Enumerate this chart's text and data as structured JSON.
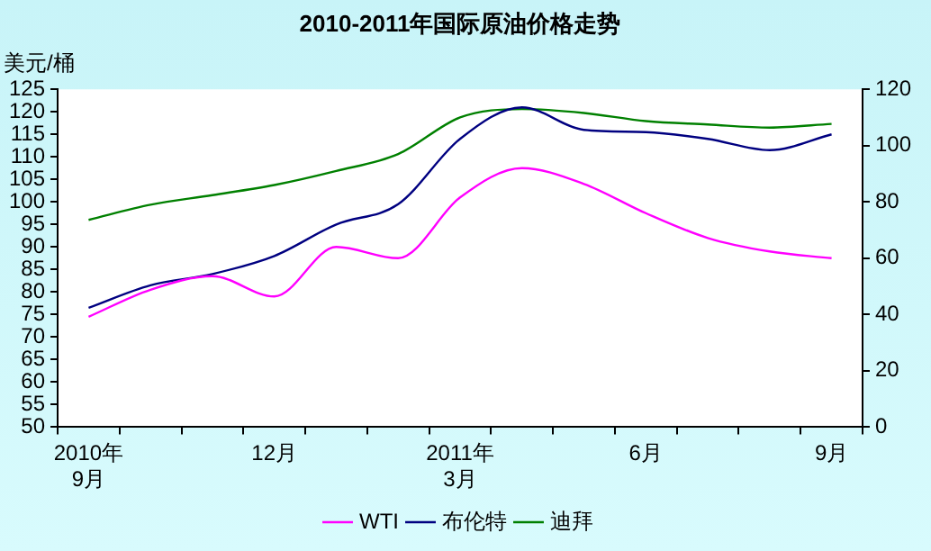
{
  "chart_data": {
    "type": "line",
    "title": "2010-2011年国际原油价格走势",
    "ylabel": "美元/桶",
    "categories": [
      "2010年\n9月",
      null,
      null,
      "12月",
      null,
      null,
      "2011年\n3月",
      null,
      null,
      "6月",
      null,
      null,
      "9月"
    ],
    "series": [
      {
        "name": "WTI",
        "color": "#ff00ff",
        "values": [
          74.5,
          80.5,
          83.5,
          79,
          90,
          87.5,
          101,
          107.5,
          104,
          97.5,
          92,
          89,
          87.5
        ]
      },
      {
        "name": "布伦特",
        "color": "#000080",
        "values": [
          76.5,
          81.5,
          84,
          88,
          95,
          99.5,
          114,
          121,
          116,
          115.5,
          114,
          111.5,
          115
        ]
      },
      {
        "name": "迪拜",
        "color": "#008000",
        "axis": "y2",
        "values": [
          73.6,
          79,
          82.4,
          86,
          91,
          97,
          110,
          113,
          111.6,
          108.7,
          107.5,
          106.4,
          107.7
        ]
      }
    ],
    "ylim": [
      50,
      125
    ],
    "yticks": [
      50,
      55,
      60,
      65,
      70,
      75,
      80,
      85,
      90,
      95,
      100,
      105,
      110,
      115,
      120,
      125
    ],
    "y2lim": [
      0,
      120
    ],
    "y2ticks": [
      0,
      20,
      40,
      60,
      80,
      100,
      120
    ],
    "grid": false,
    "legend": "bottom",
    "marker": "none",
    "line_style": "solid"
  }
}
